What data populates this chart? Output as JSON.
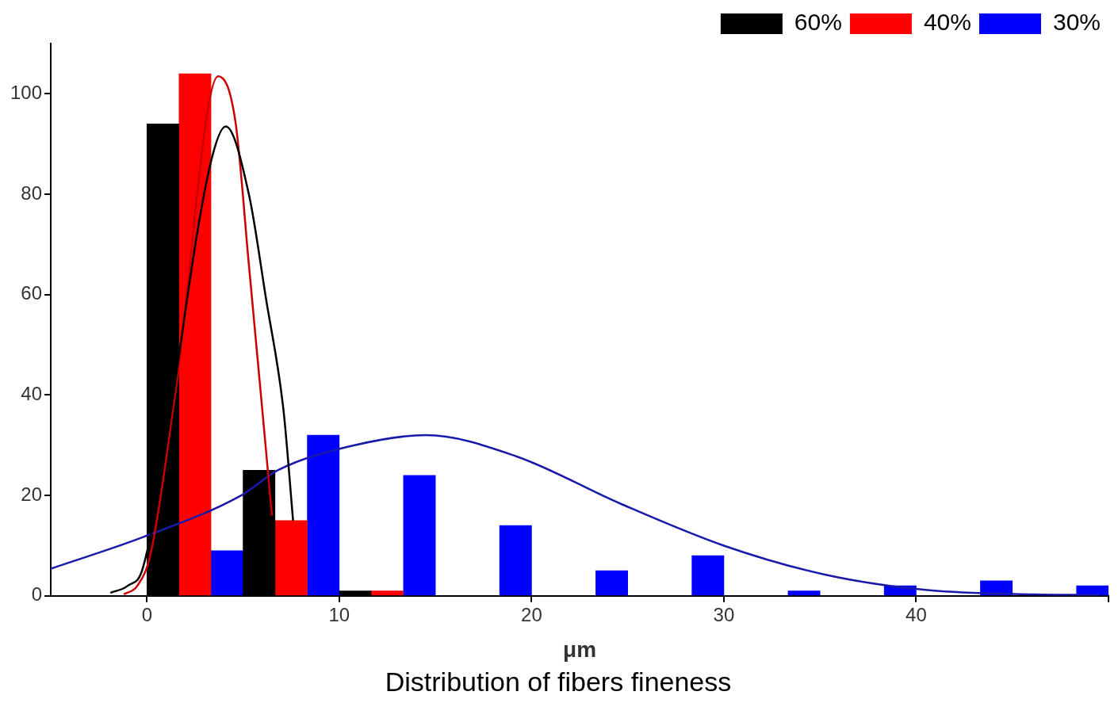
{
  "chart_data": {
    "type": "bar",
    "title": "Distribution of fibers fineness",
    "xlabel": "μm",
    "xlim": [
      -5,
      50
    ],
    "xticks": [
      0,
      10,
      20,
      30,
      40,
      {
        "value": 50,
        "label": null
      }
    ],
    "ylim": [
      0,
      110
    ],
    "yticks": [
      0,
      20,
      40,
      60,
      80,
      100
    ],
    "grid": false,
    "legend": "top right",
    "marker": "none",
    "series": [
      {
        "name": "60%",
        "color": "#000000",
        "x": [
          0.83,
          5.83,
          10.83
        ],
        "values": [
          94,
          25,
          1
        ]
      },
      {
        "name": "40%",
        "color": "#ff0000",
        "x": [
          2.5,
          7.5,
          12.5
        ],
        "values": [
          104,
          15,
          1
        ]
      },
      {
        "name": "30%",
        "color": "#0000ff",
        "x": [
          4.17,
          9.17,
          14.17,
          19.17,
          24.17,
          29.17,
          34.17,
          39.17,
          44.17,
          49.17
        ],
        "values": [
          9,
          32,
          24,
          14,
          5,
          8,
          1,
          2,
          3,
          2
        ]
      },
      {
        "type": "line",
        "color": "#000000",
        "x": [
          -1.9,
          -1,
          -0.2,
          3.3,
          4.1,
          5.3,
          6.2,
          7.1,
          7.6
        ],
        "values": [
          0.6,
          2,
          5.7,
          86,
          93.5,
          80,
          59,
          37,
          15
        ]
      },
      {
        "type": "line",
        "color": "#cc0000",
        "x": [
          -1.2,
          -0.5,
          0.2,
          1.5,
          3.7,
          4.6,
          5.3,
          6,
          6.5
        ],
        "values": [
          0.3,
          2,
          8.5,
          41,
          103.5,
          94.5,
          66,
          37,
          16
        ]
      },
      {
        "type": "line",
        "color": "#1a1aaa",
        "x": [
          -5,
          -0.2,
          4.9,
          6.8,
          10.8,
          14.5,
          19.2,
          24.6,
          30,
          35.3,
          40.7,
          46.1,
          49.5
        ],
        "values": [
          5.4,
          11.7,
          20,
          25,
          30,
          32,
          27.8,
          18.4,
          10,
          4.2,
          1.1,
          0.3,
          0.2
        ]
      }
    ]
  }
}
